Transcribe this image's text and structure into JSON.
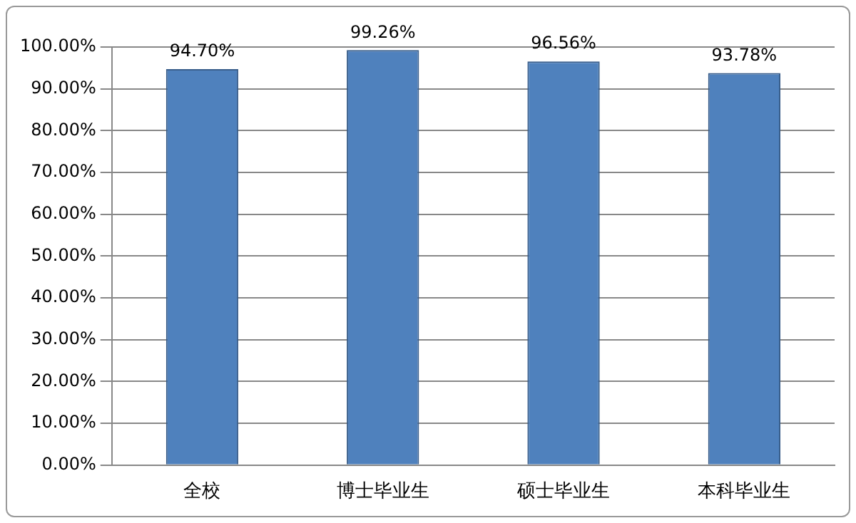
{
  "chart_data": {
    "type": "bar",
    "categories": [
      "全校",
      "博士毕业生",
      "硕士毕业生",
      "本科毕业生"
    ],
    "values": [
      94.7,
      99.26,
      96.56,
      93.78
    ],
    "color": "#4f81bd",
    "value_labels": [
      "94.70%",
      "99.26%",
      "96.56%",
      "93.78%"
    ],
    "ylim": [
      0,
      100
    ],
    "yticks": [
      {
        "value": 0,
        "label": "0.00%"
      },
      {
        "value": 10,
        "label": "10.00%"
      },
      {
        "value": 20,
        "label": "20.00%"
      },
      {
        "value": 30,
        "label": "30.00%"
      },
      {
        "value": 40,
        "label": "40.00%"
      },
      {
        "value": 50,
        "label": "50.00%"
      },
      {
        "value": 60,
        "label": "60.00%"
      },
      {
        "value": 70,
        "label": "70.00%"
      },
      {
        "value": 80,
        "label": "80.00%"
      },
      {
        "value": 90,
        "label": "90.00%"
      },
      {
        "value": 100,
        "label": "100.00%"
      }
    ],
    "grid": "y"
  }
}
